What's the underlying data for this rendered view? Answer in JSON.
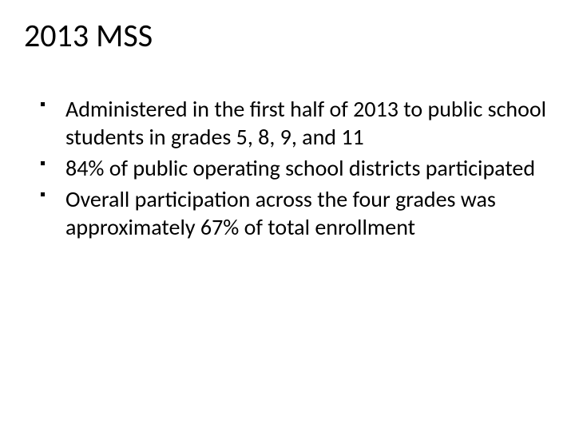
{
  "slide": {
    "title": "2013 MSS",
    "title_fontsize": 40,
    "title_color": "#000000",
    "bullets": [
      "Administered in the first half of 2013 to public school students in grades 5, 8, 9, and 11",
      "84% of public operating school districts participated",
      "Overall participation across the four grades was approximately 67% of total enrollment"
    ],
    "bullet_fontsize": 28,
    "bullet_color": "#000000",
    "bullet_marker": "square",
    "background_color": "#ffffff",
    "font_family": "Calibri"
  }
}
